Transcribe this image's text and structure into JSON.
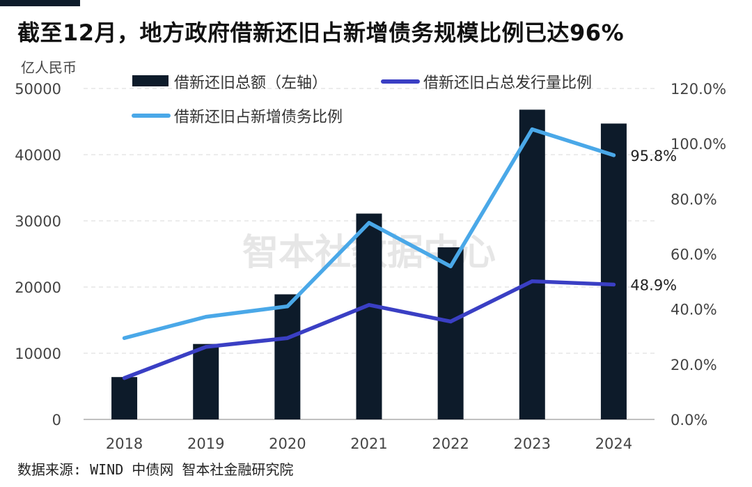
{
  "title": "截至12月，地方政府借新还旧占新增债务规模比例已达96%",
  "source": "数据来源: WIND 中债网 智本社金融研究院",
  "watermark": "智本社数据中心",
  "colors": {
    "bar": "#0d1b2a",
    "issuance_ratio_line": "#3a3fc4",
    "new_debt_ratio_line": "#4aa8e8",
    "axis_text": "#444444",
    "grid": "#d9d9d9",
    "title": "#111111",
    "watermark": "#c8c8c8"
  },
  "chart_data": {
    "type": "bar",
    "x": [
      "2018",
      "2019",
      "2020",
      "2021",
      "2022",
      "2023",
      "2024"
    ],
    "y_left": {
      "unit_label": "亿人民币",
      "range": [
        0,
        50000
      ],
      "ticks": [
        "0",
        "10000",
        "20000",
        "30000",
        "40000",
        "50000"
      ],
      "tick_values": [
        0,
        10000,
        20000,
        30000,
        40000,
        50000
      ]
    },
    "y_right": {
      "range": [
        0,
        120
      ],
      "ticks": [
        "0.0%",
        "20.0%",
        "40.0%",
        "60.0%",
        "80.0%",
        "100.0%",
        "120.0%"
      ],
      "tick_values": [
        0,
        20,
        40,
        60,
        80,
        100,
        120
      ]
    },
    "grid": "horizontal dashed",
    "legend_placement": "top",
    "series": [
      {
        "name": "借新还旧总额（左轴）",
        "kind": "bar",
        "axis": "left",
        "color": "#0d1b2a",
        "values": [
          6400,
          11400,
          18900,
          31100,
          26000,
          46800,
          44700
        ]
      },
      {
        "name": "借新还旧占总发行量比例",
        "kind": "line",
        "axis": "right",
        "color": "#3a3fc4",
        "values": [
          15.0,
          26.3,
          29.5,
          41.5,
          35.5,
          50.1,
          48.9
        ],
        "end_label": "48.9%"
      },
      {
        "name": "借新还旧占新增债务比例",
        "kind": "line",
        "axis": "right",
        "color": "#4aa8e8",
        "values": [
          29.5,
          37.2,
          41.0,
          71.3,
          55.5,
          105.2,
          95.8
        ],
        "end_label": "95.8%"
      }
    ]
  }
}
